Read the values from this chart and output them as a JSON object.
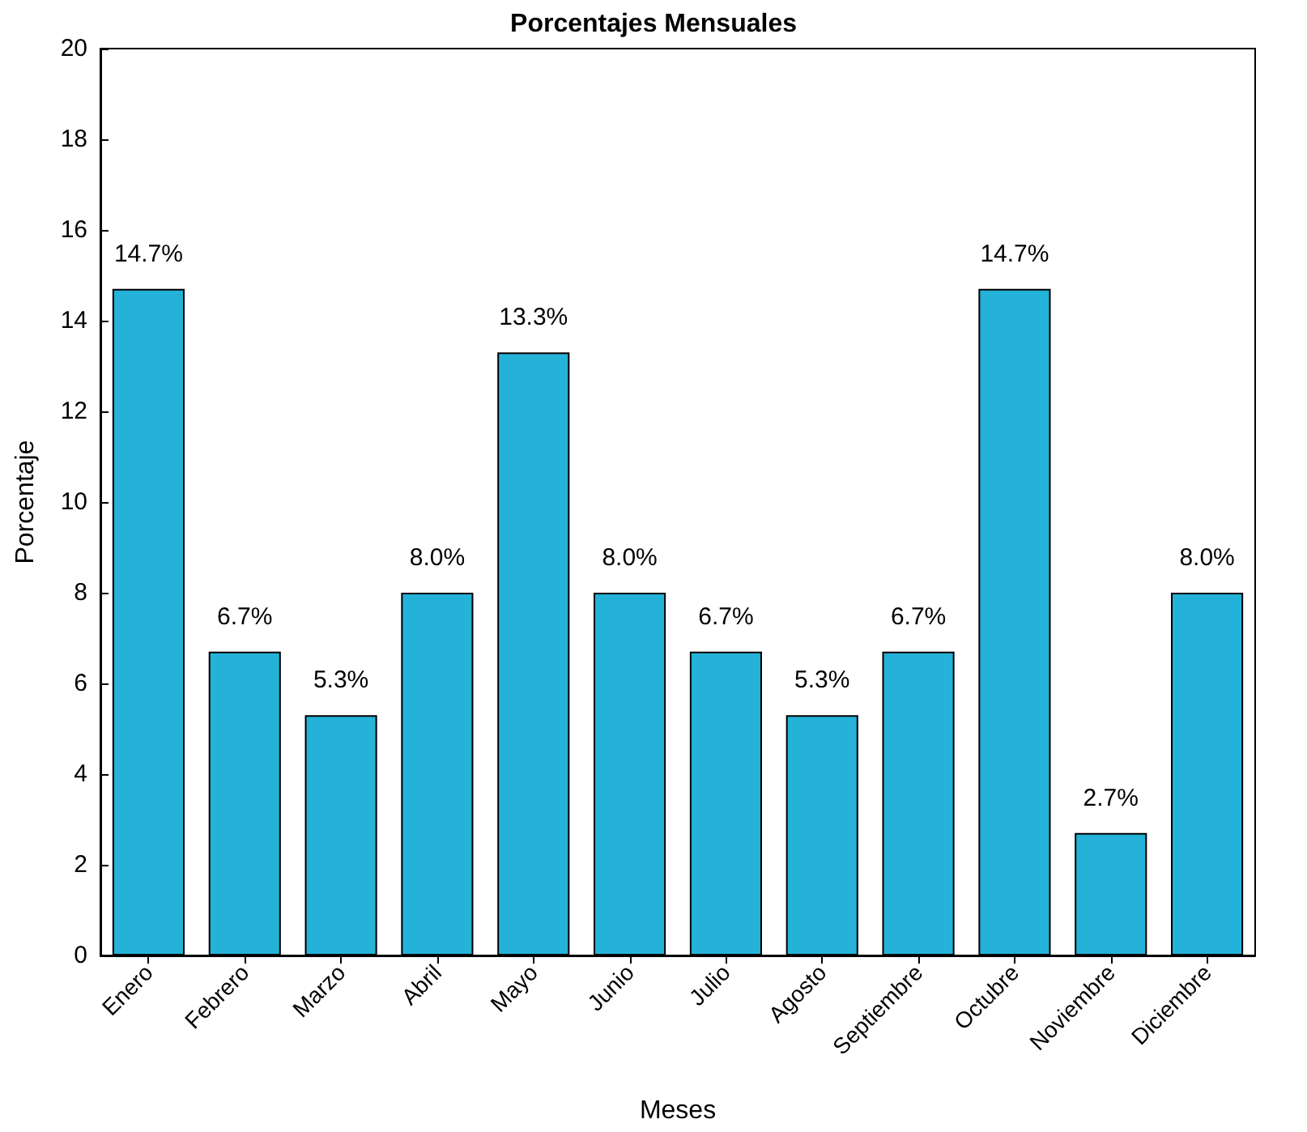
{
  "chart_data": {
    "type": "bar",
    "title": "Porcentajes Mensuales",
    "xlabel": "Meses",
    "ylabel": "Porcentaje",
    "categories": [
      "Enero",
      "Febrero",
      "Marzo",
      "Abril",
      "Mayo",
      "Junio",
      "Julio",
      "Agosto",
      "Septiembre",
      "Octubre",
      "Noviembre",
      "Diciembre"
    ],
    "values": [
      14.7,
      6.7,
      5.3,
      8.0,
      13.3,
      8.0,
      6.7,
      5.3,
      6.7,
      14.7,
      2.7,
      8.0
    ],
    "value_labels": [
      "14.7%",
      "6.7%",
      "5.3%",
      "8.0%",
      "13.3%",
      "8.0%",
      "6.7%",
      "5.3%",
      "6.7%",
      "14.7%",
      "2.7%",
      "8.0%"
    ],
    "color": "#25b2d8",
    "ylim": [
      0,
      20
    ],
    "yticks": [
      0,
      2,
      4,
      6,
      8,
      10,
      12,
      14,
      16,
      18,
      20
    ],
    "grid": false
  }
}
